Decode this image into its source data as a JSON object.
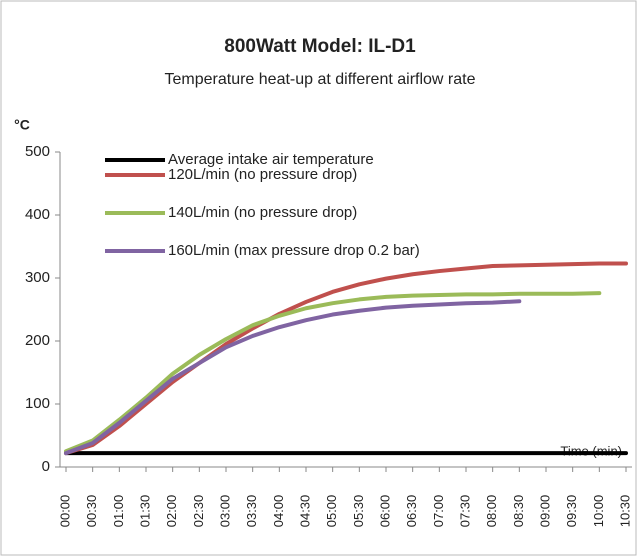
{
  "chart_data": {
    "type": "line",
    "title": "800Watt Model: IL-D1",
    "subtitle": "Temperature heat-up at different airflow rate",
    "y_axis_label": "°C",
    "x_axis_label": "Time (min)",
    "categories": [
      "00:00",
      "00:30",
      "01:00",
      "01:30",
      "02:00",
      "02:30",
      "03:00",
      "03:30",
      "04:00",
      "04:30",
      "05:00",
      "05:30",
      "06:00",
      "06:30",
      "07:00",
      "07:30",
      "08:00",
      "08:30",
      "09:00",
      "09:30",
      "10:00",
      "10:30"
    ],
    "series": [
      {
        "name": "Average intake air temperature",
        "color": "#000000",
        "values": [
          22,
          22,
          22,
          22,
          22,
          22,
          22,
          22,
          22,
          22,
          22,
          22,
          22,
          22,
          22,
          22,
          22,
          22,
          22,
          22,
          22,
          22
        ]
      },
      {
        "name": "120L/min (no pressure drop)",
        "color": "#c0504d",
        "values": [
          22,
          35,
          65,
          100,
          135,
          165,
          195,
          220,
          243,
          262,
          278,
          290,
          299,
          306,
          311,
          315,
          319,
          320,
          321,
          322,
          323,
          323
        ]
      },
      {
        "name": "140L/min (no pressure drop)",
        "color": "#9bbb59",
        "values": [
          25,
          42,
          75,
          110,
          148,
          178,
          203,
          225,
          240,
          252,
          260,
          266,
          270,
          272,
          273,
          274,
          274,
          275,
          275,
          275,
          276,
          null
        ]
      },
      {
        "name": "160L/min (max pressure drop 0.2 bar)",
        "color": "#8064a2",
        "values": [
          22,
          38,
          70,
          105,
          140,
          165,
          190,
          208,
          222,
          233,
          242,
          248,
          253,
          256,
          258,
          260,
          261,
          263,
          null,
          null,
          null,
          null
        ]
      }
    ],
    "ylim": [
      0,
      500
    ],
    "yticks": [
      0,
      100,
      200,
      300,
      400,
      500
    ],
    "grid": false
  }
}
